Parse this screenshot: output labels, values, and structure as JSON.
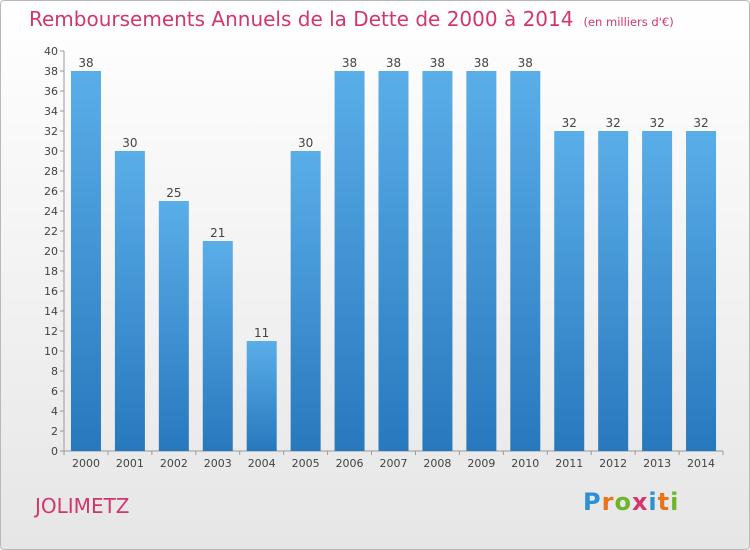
{
  "header": {
    "title": "Remboursements Annuels de la Dette de 2000 à 2014",
    "subtitle": "(en milliers d'€)"
  },
  "footer": {
    "city": "JOLIMETZ",
    "brand": "Proxiti"
  },
  "colors": {
    "accent": "#d2366d",
    "bar_top": "#5aaee8",
    "bar_bottom": "#2878be"
  },
  "chart_data": {
    "type": "bar",
    "title": "Remboursements Annuels de la Dette de 2000 à 2014",
    "subtitle": "(en milliers d'€)",
    "categories": [
      "2000",
      "2001",
      "2002",
      "2003",
      "2004",
      "2005",
      "2006",
      "2007",
      "2008",
      "2009",
      "2010",
      "2011",
      "2012",
      "2013",
      "2014"
    ],
    "values": [
      38,
      30,
      25,
      21,
      11,
      30,
      38,
      38,
      38,
      38,
      38,
      32,
      32,
      32,
      32
    ],
    "ylim": [
      0,
      40
    ],
    "ytick_step": 2,
    "grid": false,
    "data_labels": true
  }
}
